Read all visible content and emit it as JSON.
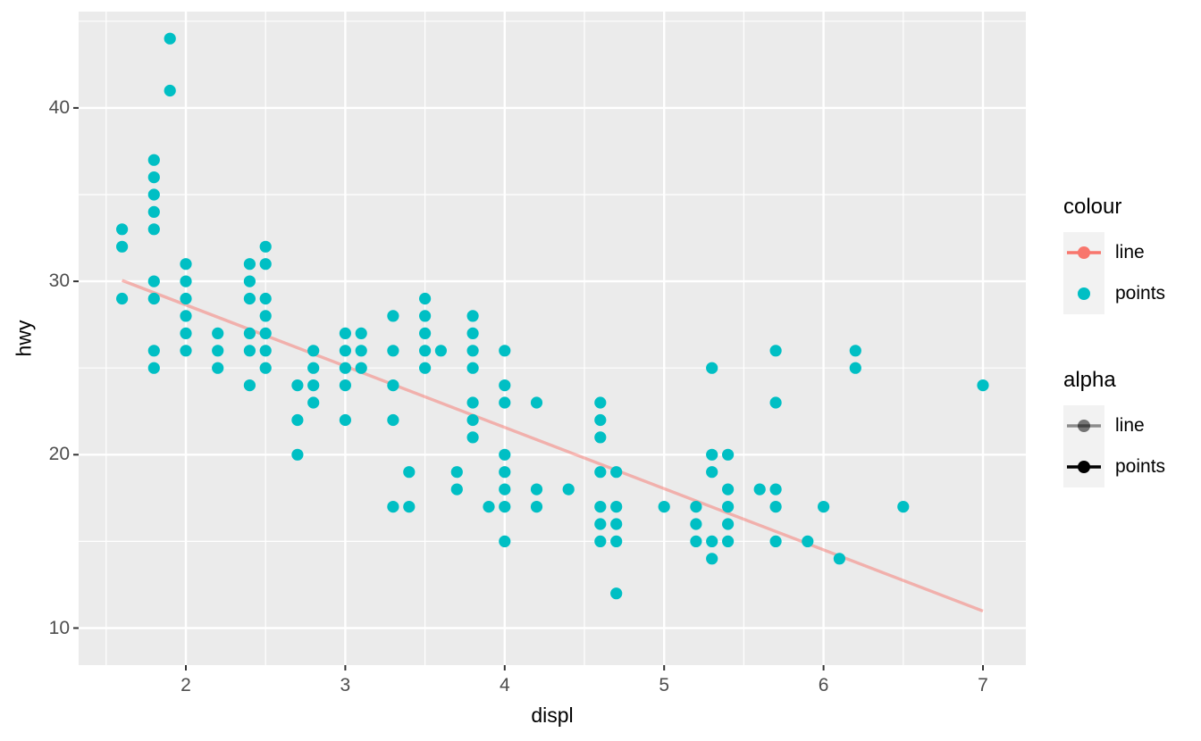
{
  "chart_data": {
    "type": "scatter",
    "title": "",
    "xlabel": "displ",
    "ylabel": "hwy",
    "x_ticks": [
      "2",
      "3",
      "4",
      "5",
      "6",
      "7"
    ],
    "x_tick_values": [
      2,
      3,
      4,
      5,
      6,
      7
    ],
    "x_minor_values": [
      1.5,
      2.5,
      3.5,
      4.5,
      5.5,
      6.5
    ],
    "y_ticks": [
      "10",
      "20",
      "30",
      "40"
    ],
    "y_tick_values": [
      10,
      20,
      30,
      40
    ],
    "y_minor_values": [
      15,
      25,
      35,
      45
    ],
    "xlim": [
      1.33,
      7.27
    ],
    "ylim": [
      7.86,
      45.56
    ],
    "grid": "on",
    "panel_background": "#EBEBEB",
    "point_color": "#00BFC4",
    "point_radius": 6.6,
    "line": {
      "x1": 1.6,
      "y1": 30.05,
      "x2": 7.0,
      "y2": 10.98,
      "color": "#F8766D",
      "alpha": 0.5,
      "width": 3.4
    },
    "points": [
      [
        1.6,
        29
      ],
      [
        1.6,
        32
      ],
      [
        1.6,
        33
      ],
      [
        1.8,
        25
      ],
      [
        1.8,
        26
      ],
      [
        1.8,
        29
      ],
      [
        1.8,
        30
      ],
      [
        1.8,
        33
      ],
      [
        1.8,
        34
      ],
      [
        1.8,
        35
      ],
      [
        1.8,
        36
      ],
      [
        1.8,
        37
      ],
      [
        1.9,
        41
      ],
      [
        1.9,
        44
      ],
      [
        2.0,
        26
      ],
      [
        2.0,
        27
      ],
      [
        2.0,
        28
      ],
      [
        2.0,
        29
      ],
      [
        2.0,
        30
      ],
      [
        2.0,
        31
      ],
      [
        2.2,
        25
      ],
      [
        2.2,
        26
      ],
      [
        2.2,
        27
      ],
      [
        2.4,
        24
      ],
      [
        2.4,
        26
      ],
      [
        2.4,
        27
      ],
      [
        2.4,
        29
      ],
      [
        2.4,
        30
      ],
      [
        2.4,
        31
      ],
      [
        2.5,
        25
      ],
      [
        2.5,
        26
      ],
      [
        2.5,
        27
      ],
      [
        2.5,
        28
      ],
      [
        2.5,
        29
      ],
      [
        2.5,
        31
      ],
      [
        2.5,
        32
      ],
      [
        2.7,
        20
      ],
      [
        2.7,
        22
      ],
      [
        2.7,
        24
      ],
      [
        2.8,
        23
      ],
      [
        2.8,
        24
      ],
      [
        2.8,
        25
      ],
      [
        2.8,
        26
      ],
      [
        3.0,
        22
      ],
      [
        3.0,
        24
      ],
      [
        3.0,
        25
      ],
      [
        3.0,
        26
      ],
      [
        3.0,
        27
      ],
      [
        3.1,
        25
      ],
      [
        3.1,
        26
      ],
      [
        3.1,
        27
      ],
      [
        3.3,
        17
      ],
      [
        3.3,
        22
      ],
      [
        3.3,
        24
      ],
      [
        3.3,
        26
      ],
      [
        3.3,
        28
      ],
      [
        3.4,
        17
      ],
      [
        3.4,
        19
      ],
      [
        3.5,
        25
      ],
      [
        3.5,
        26
      ],
      [
        3.5,
        27
      ],
      [
        3.5,
        28
      ],
      [
        3.5,
        29
      ],
      [
        3.6,
        26
      ],
      [
        3.7,
        18
      ],
      [
        3.7,
        19
      ],
      [
        3.8,
        21
      ],
      [
        3.8,
        22
      ],
      [
        3.8,
        23
      ],
      [
        3.8,
        25
      ],
      [
        3.8,
        26
      ],
      [
        3.8,
        27
      ],
      [
        3.8,
        28
      ],
      [
        3.9,
        17
      ],
      [
        4.0,
        15
      ],
      [
        4.0,
        17
      ],
      [
        4.0,
        18
      ],
      [
        4.0,
        19
      ],
      [
        4.0,
        20
      ],
      [
        4.0,
        23
      ],
      [
        4.0,
        24
      ],
      [
        4.0,
        26
      ],
      [
        4.2,
        17
      ],
      [
        4.2,
        18
      ],
      [
        4.2,
        23
      ],
      [
        4.4,
        18
      ],
      [
        4.6,
        15
      ],
      [
        4.6,
        16
      ],
      [
        4.6,
        17
      ],
      [
        4.6,
        19
      ],
      [
        4.6,
        21
      ],
      [
        4.6,
        22
      ],
      [
        4.6,
        23
      ],
      [
        4.7,
        12
      ],
      [
        4.7,
        15
      ],
      [
        4.7,
        16
      ],
      [
        4.7,
        17
      ],
      [
        4.7,
        19
      ],
      [
        5.0,
        17
      ],
      [
        5.2,
        15
      ],
      [
        5.2,
        16
      ],
      [
        5.2,
        17
      ],
      [
        5.3,
        14
      ],
      [
        5.3,
        15
      ],
      [
        5.3,
        19
      ],
      [
        5.3,
        20
      ],
      [
        5.3,
        25
      ],
      [
        5.4,
        15
      ],
      [
        5.4,
        16
      ],
      [
        5.4,
        17
      ],
      [
        5.4,
        18
      ],
      [
        5.4,
        20
      ],
      [
        5.6,
        18
      ],
      [
        5.7,
        15
      ],
      [
        5.7,
        17
      ],
      [
        5.7,
        18
      ],
      [
        5.7,
        23
      ],
      [
        5.7,
        26
      ],
      [
        5.9,
        15
      ],
      [
        6.0,
        17
      ],
      [
        6.1,
        14
      ],
      [
        6.2,
        25
      ],
      [
        6.2,
        26
      ],
      [
        6.5,
        17
      ],
      [
        7.0,
        24
      ]
    ]
  },
  "axes": {
    "x_title": "displ",
    "y_title": "hwy"
  },
  "legend": {
    "colour": {
      "title": "colour",
      "items": [
        {
          "label": "line",
          "glyph": "line-and-point",
          "color": "#F8766D"
        },
        {
          "label": "points",
          "glyph": "point",
          "color": "#00BFC4"
        }
      ]
    },
    "alpha": {
      "title": "alpha",
      "items": [
        {
          "label": "line",
          "glyph": "line-and-point",
          "color": "#000000",
          "alpha": 0.45
        },
        {
          "label": "points",
          "glyph": "line-and-point",
          "color": "#000000",
          "alpha": 1
        }
      ]
    }
  },
  "colors": {
    "panel": "#EBEBEB",
    "gridline": "#FFFFFF",
    "tick_text": "#4d4d4d",
    "tick_mark": "#333333",
    "legend_key_fill": "#F2F2F2"
  }
}
